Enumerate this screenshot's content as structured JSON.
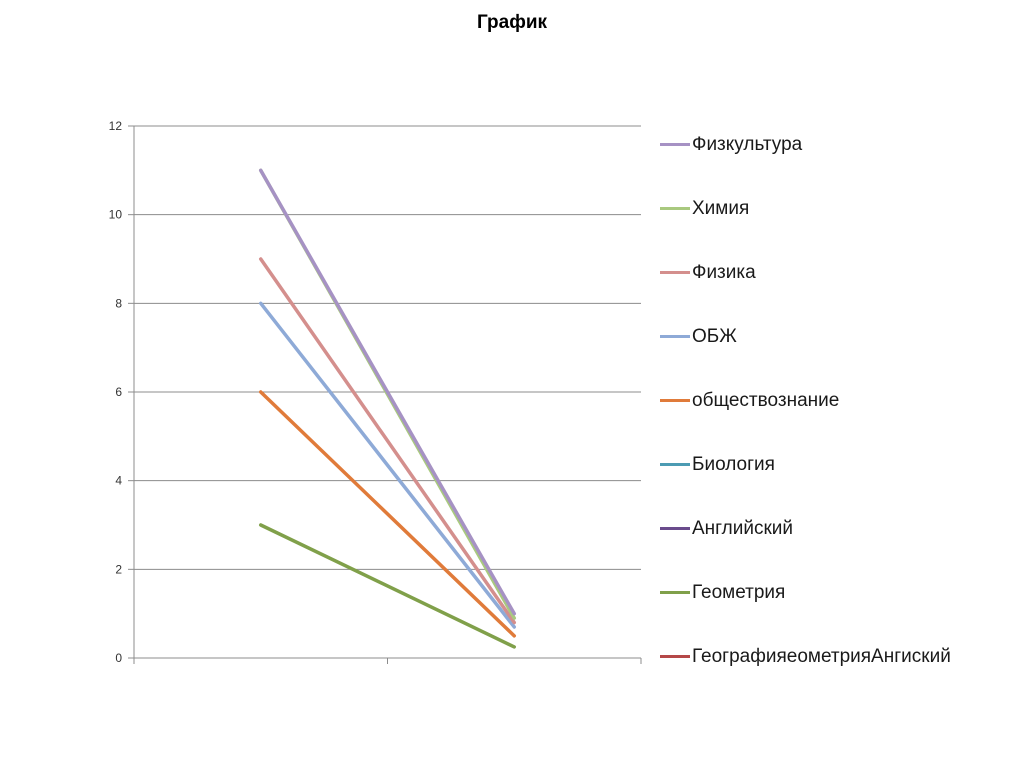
{
  "chart_data": {
    "type": "line",
    "title": "График",
    "xlabel": "",
    "ylabel": "",
    "ylim": [
      0,
      12
    ],
    "yticks": [
      "0",
      "2",
      "4",
      "6",
      "8",
      "10",
      "12"
    ],
    "categories": [
      "",
      ""
    ],
    "grid": true,
    "legend_position": "right",
    "series": [
      {
        "name": "Физкультура",
        "color": "#a692c4",
        "values": [
          11,
          1.0
        ]
      },
      {
        "name": "Химия",
        "color": "#a9c97f",
        "values": [
          11,
          0.9
        ]
      },
      {
        "name": "Физика",
        "color": "#d48f8d",
        "values": [
          9,
          0.8
        ]
      },
      {
        "name": "ОБЖ",
        "color": "#8eaad7",
        "values": [
          8,
          0.7
        ]
      },
      {
        "name": "обществознание",
        "color": "#e07b3a",
        "values": [
          6,
          0.5
        ]
      },
      {
        "name": "Биология",
        "color": "#4c9bb3",
        "values": [
          null,
          null
        ]
      },
      {
        "name": "Английский",
        "color": "#6a4b8c",
        "values": [
          null,
          null
        ]
      },
      {
        "name": "Геометрия",
        "color": "#80a04a",
        "values": [
          3,
          0.25
        ]
      },
      {
        "name": "ГеографияеометрияАнгиский",
        "color": "#b54848",
        "values": [
          null,
          null
        ]
      }
    ]
  }
}
